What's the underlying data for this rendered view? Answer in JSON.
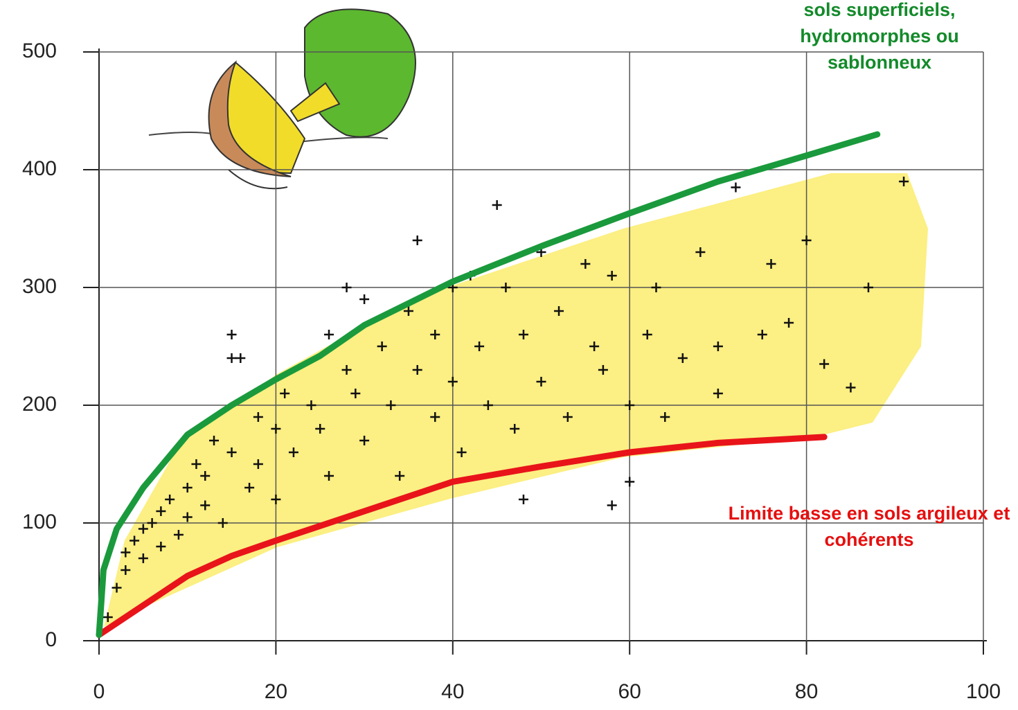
{
  "chart_data": {
    "type": "scatter",
    "x": [
      1,
      2,
      3,
      3,
      4,
      5,
      5,
      6,
      7,
      7,
      8,
      9,
      10,
      10,
      11,
      12,
      12,
      13,
      14,
      15,
      15,
      15,
      16,
      17,
      18,
      18,
      20,
      20,
      21,
      22,
      24,
      25,
      26,
      26,
      28,
      28,
      29,
      30,
      30,
      32,
      33,
      34,
      35,
      36,
      36,
      38,
      38,
      40,
      40,
      41,
      42,
      43,
      44,
      45,
      46,
      47,
      48,
      48,
      50,
      50,
      52,
      53,
      55,
      56,
      57,
      58,
      58,
      60,
      60,
      62,
      63,
      64,
      66,
      68,
      70,
      70,
      72,
      75,
      76,
      78,
      80,
      82,
      85,
      87,
      91
    ],
    "values": [
      20,
      45,
      60,
      75,
      85,
      70,
      95,
      100,
      80,
      110,
      120,
      90,
      130,
      105,
      150,
      140,
      115,
      170,
      100,
      160,
      260,
      240,
      240,
      130,
      190,
      150,
      180,
      120,
      210,
      160,
      200,
      180,
      260,
      140,
      230,
      300,
      210,
      170,
      290,
      250,
      200,
      140,
      280,
      340,
      230,
      190,
      260,
      300,
      220,
      160,
      310,
      250,
      200,
      370,
      300,
      180,
      260,
      120,
      330,
      220,
      280,
      190,
      320,
      250,
      230,
      310,
      115,
      200,
      135,
      260,
      300,
      190,
      240,
      330,
      210,
      250,
      385,
      260,
      320,
      270,
      340,
      235,
      215,
      300,
      390
    ],
    "color": "#111111",
    "series": [
      {
        "name": "Limite basse en sols argileux et cohérents",
        "color": "#e8141a",
        "text_color": "#e60f0f",
        "x": [
          0,
          5,
          10,
          15,
          20,
          30,
          40,
          50,
          60,
          70,
          82
        ],
        "values": [
          5,
          30,
          55,
          72,
          85,
          110,
          135,
          148,
          160,
          168,
          173
        ]
      },
      {
        "name": "sols superficiels, hydromorphes ou sablonneux",
        "color": "#1a9a3c",
        "text_color": "#138a2a",
        "x": [
          0,
          0.5,
          2,
          5,
          10,
          15,
          20,
          25,
          30,
          40,
          50,
          60,
          70,
          80,
          88
        ],
        "values": [
          5,
          60,
          95,
          130,
          175,
          200,
          222,
          242,
          268,
          305,
          335,
          363,
          390,
          412,
          430
        ]
      }
    ],
    "xlim": [
      0,
      100
    ],
    "ylim": [
      0,
      500
    ],
    "xticks": [
      0,
      20,
      40,
      60,
      80,
      100
    ],
    "yticks": [
      0,
      100,
      200,
      300,
      400,
      500
    ],
    "grid": true
  }
}
